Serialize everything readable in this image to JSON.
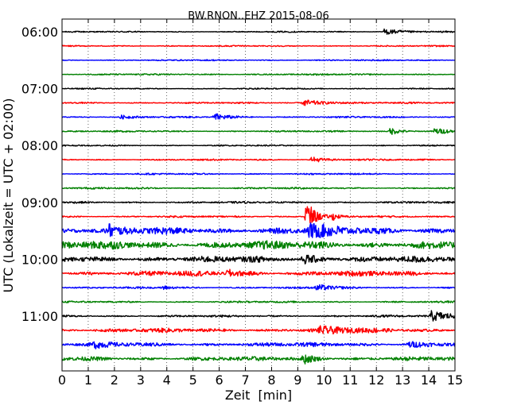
{
  "chart_data": {
    "type": "line",
    "title": "BW.RNON..EHZ 2015-08-06",
    "xlabel": "Zeit  [min]",
    "ylabel": "UTC (Lokalzeit = UTC + 02:00)",
    "xlim": [
      0,
      15
    ],
    "x_ticks": [
      "0",
      "1",
      "2",
      "3",
      "4",
      "5",
      "6",
      "7",
      "8",
      "9",
      "10",
      "11",
      "12",
      "13",
      "14",
      "15"
    ],
    "y_ticks": [
      "06:00",
      "07:00",
      "08:00",
      "09:00",
      "10:00",
      "11:00"
    ],
    "grid": "vertical dotted",
    "line_colors": [
      "#000000",
      "#ff0000",
      "#0000ff",
      "#008000"
    ],
    "traces": [
      {
        "start": "06:00",
        "amplitude": 0.25,
        "events": [
          {
            "t": 12.3,
            "amp": 1.2,
            "dur": 0.7
          }
        ]
      },
      {
        "start": "06:15",
        "amplitude": 0.25,
        "events": []
      },
      {
        "start": "06:30",
        "amplitude": 0.25,
        "events": []
      },
      {
        "start": "06:45",
        "amplitude": 0.3,
        "events": []
      },
      {
        "start": "07:00",
        "amplitude": 0.25,
        "events": []
      },
      {
        "start": "07:15",
        "amplitude": 0.3,
        "events": [
          {
            "t": 9.2,
            "amp": 1.4,
            "dur": 0.8
          }
        ]
      },
      {
        "start": "07:30",
        "amplitude": 0.3,
        "events": [
          {
            "t": 2.2,
            "amp": 0.8,
            "dur": 0.4
          },
          {
            "t": 5.8,
            "amp": 1.6,
            "dur": 0.5
          }
        ]
      },
      {
        "start": "07:45",
        "amplitude": 0.3,
        "events": [
          {
            "t": 12.5,
            "amp": 1.6,
            "dur": 0.4
          },
          {
            "t": 14.2,
            "amp": 1.2,
            "dur": 0.6
          }
        ]
      },
      {
        "start": "08:00",
        "amplitude": 0.25,
        "events": []
      },
      {
        "start": "08:15",
        "amplitude": 0.3,
        "events": [
          {
            "t": 9.5,
            "amp": 1.2,
            "dur": 0.5
          }
        ]
      },
      {
        "start": "08:30",
        "amplitude": 0.3,
        "events": []
      },
      {
        "start": "08:45",
        "amplitude": 0.35,
        "events": []
      },
      {
        "start": "09:00",
        "amplitude": 0.35,
        "events": []
      },
      {
        "start": "09:15",
        "amplitude": 0.35,
        "events": [
          {
            "t": 9.3,
            "amp": 8,
            "dur": 0.3
          },
          {
            "t": 10.3,
            "amp": 1.4,
            "dur": 0.2
          }
        ]
      },
      {
        "start": "09:30",
        "amplitude": 1.4,
        "events": [
          {
            "t": 1.8,
            "amp": 2.2,
            "dur": 0.2
          },
          {
            "t": 9.4,
            "amp": 2.6,
            "dur": 0.8
          }
        ]
      },
      {
        "start": "09:45",
        "amplitude": 1.6,
        "events": []
      },
      {
        "start": "10:00",
        "amplitude": 1.2,
        "events": [
          {
            "t": 9.2,
            "amp": 1.6,
            "dur": 0.6
          }
        ]
      },
      {
        "start": "10:15",
        "amplitude": 1.0,
        "events": [
          {
            "t": 6.3,
            "amp": 1.6,
            "dur": 0.4
          }
        ]
      },
      {
        "start": "10:30",
        "amplitude": 0.35,
        "events": [
          {
            "t": 3.8,
            "amp": 1.0,
            "dur": 0.3
          },
          {
            "t": 9.7,
            "amp": 1.5,
            "dur": 0.5
          }
        ]
      },
      {
        "start": "10:45",
        "amplitude": 0.35,
        "events": []
      },
      {
        "start": "11:00",
        "amplitude": 0.4,
        "events": [
          {
            "t": 14.1,
            "amp": 2.0,
            "dur": 0.9
          }
        ]
      },
      {
        "start": "11:15",
        "amplitude": 0.8,
        "events": [
          {
            "t": 9.8,
            "amp": 1.2,
            "dur": 1.2
          }
        ]
      },
      {
        "start": "11:30",
        "amplitude": 0.8,
        "events": [
          {
            "t": 1.2,
            "amp": 1.2,
            "dur": 0.4
          },
          {
            "t": 13.2,
            "amp": 1.2,
            "dur": 0.6
          }
        ]
      },
      {
        "start": "11:45",
        "amplitude": 0.8,
        "events": [
          {
            "t": 9.2,
            "amp": 2.0,
            "dur": 0.4
          }
        ]
      }
    ]
  }
}
